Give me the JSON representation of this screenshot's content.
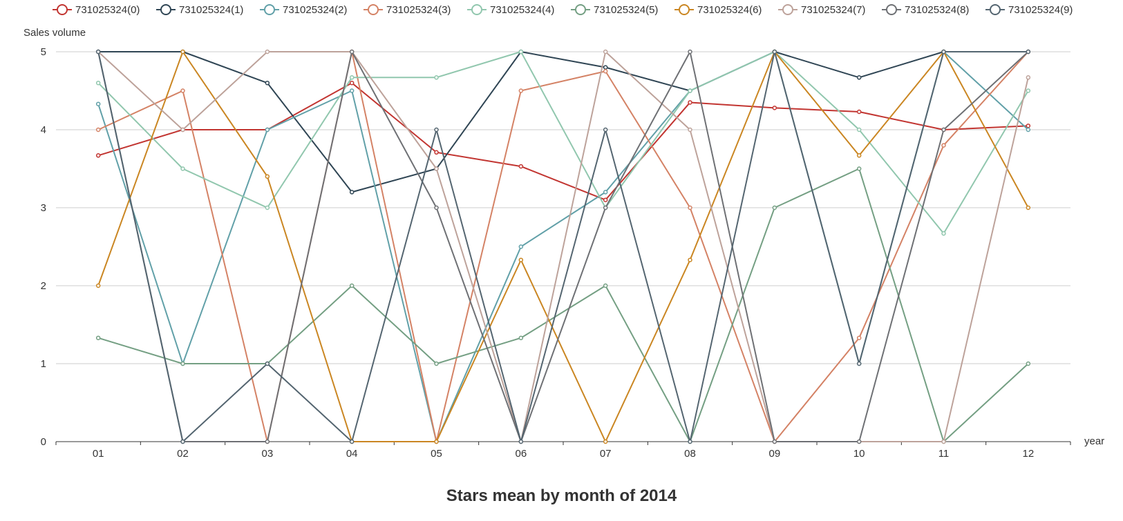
{
  "chart_data": {
    "type": "line",
    "title": "Stars mean by month of 2014",
    "xlabel": "year",
    "ylabel": "Sales volume",
    "ylim": [
      0,
      5
    ],
    "yticks": [
      0,
      1,
      2,
      3,
      4,
      5
    ],
    "grid": true,
    "legend_position": "top",
    "categories": [
      "01",
      "02",
      "03",
      "04",
      "05",
      "06",
      "07",
      "08",
      "09",
      "10",
      "11",
      "12"
    ],
    "series": [
      {
        "name": "731025324(0)",
        "color": "#c23531",
        "values": [
          3.67,
          4,
          4,
          4.6,
          3.71,
          3.53,
          3.1,
          4.35,
          4.28,
          4.23,
          4,
          4.05
        ]
      },
      {
        "name": "731025324(1)",
        "color": "#2f4554",
        "values": [
          5,
          5,
          4.6,
          3.2,
          3.5,
          5,
          4.8,
          4.5,
          5,
          4.67,
          5,
          5
        ]
      },
      {
        "name": "731025324(2)",
        "color": "#61a0a8",
        "values": [
          4.33,
          1,
          4,
          4.5,
          0,
          2.5,
          3.2,
          4.5,
          5,
          1,
          5,
          4
        ]
      },
      {
        "name": "731025324(3)",
        "color": "#d48265",
        "values": [
          4,
          4.5,
          0,
          5,
          0,
          4.5,
          4.75,
          3,
          0,
          1.33,
          3.8,
          5
        ]
      },
      {
        "name": "731025324(4)",
        "color": "#91c7ae",
        "values": [
          4.6,
          3.5,
          3,
          4.67,
          4.67,
          5,
          3,
          4.5,
          5,
          4,
          2.67,
          4.5
        ]
      },
      {
        "name": "731025324(5)",
        "color": "#749f83",
        "values": [
          1.33,
          1,
          1,
          2,
          1,
          1.33,
          2,
          0,
          3,
          3.5,
          0,
          1
        ]
      },
      {
        "name": "731025324(6)",
        "color": "#ca8622",
        "values": [
          2,
          5,
          3.4,
          0,
          0,
          2.33,
          0,
          2.33,
          5,
          3.67,
          5,
          3
        ]
      },
      {
        "name": "731025324(7)",
        "color": "#bda29a",
        "values": [
          5,
          4,
          5,
          5,
          3.5,
          0,
          5,
          4,
          0,
          0,
          0,
          4.67
        ]
      },
      {
        "name": "731025324(8)",
        "color": "#6e7074",
        "values": [
          5,
          0,
          0,
          5,
          3,
          0,
          3,
          5,
          0,
          0,
          4,
          5
        ]
      },
      {
        "name": "731025324(9)",
        "color": "#546570",
        "values": [
          5,
          0,
          1,
          0,
          4,
          0,
          4,
          0,
          5,
          1,
          5,
          5
        ]
      }
    ]
  }
}
